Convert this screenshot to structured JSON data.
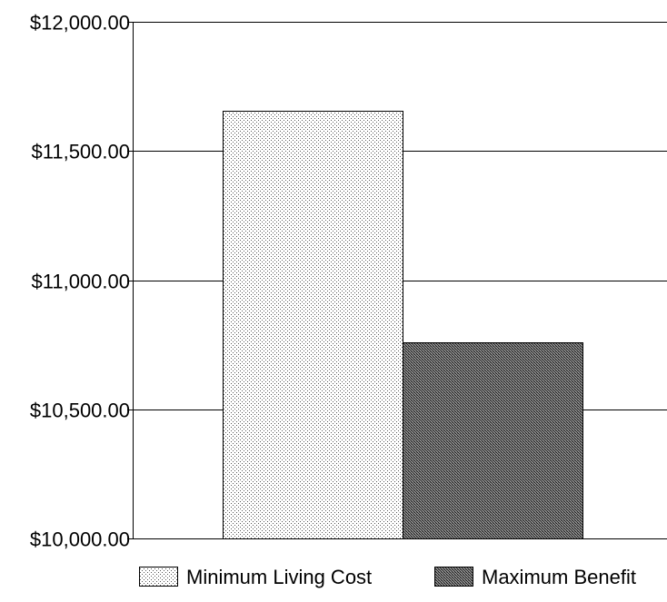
{
  "chart_data": {
    "type": "bar",
    "title": "",
    "xlabel": "",
    "ylabel": "",
    "categories": [
      ""
    ],
    "series": [
      {
        "name": "Minimum Living Cost",
        "values": [
          11655
        ],
        "pattern": "dots-light",
        "color": "#b0b0b0"
      },
      {
        "name": "Maximum Benefit",
        "values": [
          10760
        ],
        "pattern": "crosshatch-dark",
        "color": "#5a5a5a"
      }
    ],
    "ylim": [
      10000,
      12000
    ],
    "yticks": [
      10000,
      10500,
      11000,
      11500,
      12000
    ],
    "ytick_labels": [
      "$10,000.00",
      "$10,500.00",
      "$11,000.00",
      "$11,500.00",
      "$12,000.00"
    ],
    "grid": true,
    "legend_position": "bottom"
  }
}
